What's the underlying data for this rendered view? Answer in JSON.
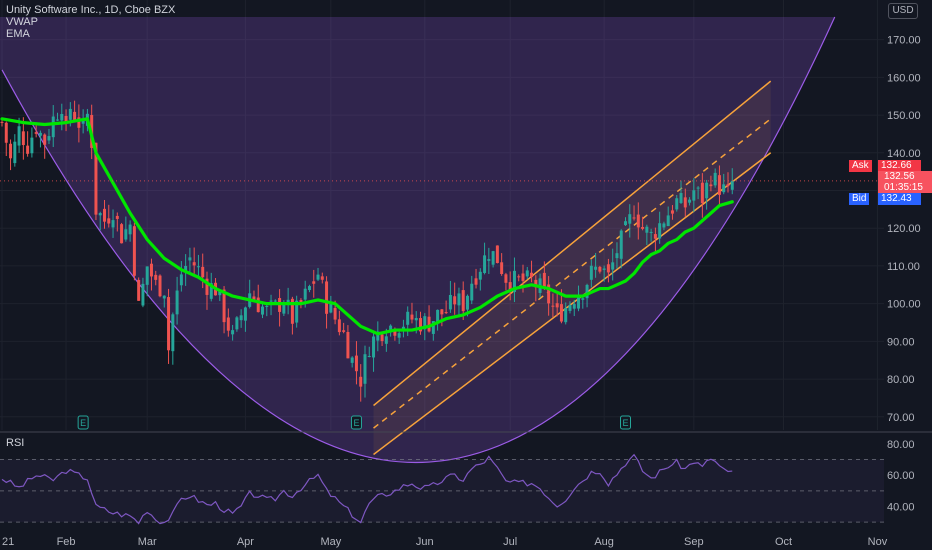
{
  "legend": {
    "title": "Unity Software Inc., 1D, Cboe BZX",
    "vwap": "VWAP",
    "ema": "EMA"
  },
  "currency": "USD",
  "quote": {
    "ask_label": "Ask",
    "ask_value": "132.66",
    "last_value": "132.56",
    "countdown": "01:35:15",
    "bid_label": "Bid",
    "bid_value": "132.43"
  },
  "rsi_panel": {
    "label": "RSI"
  },
  "earnings_marker": "E",
  "colors": {
    "background": "#131722",
    "up": "#26a69a",
    "down": "#ef5350",
    "ema": "#00e600",
    "channel": "#f7a23b",
    "arc": "#9c5ce8",
    "rsi": "#7e57c2",
    "ask": "#f23645",
    "bid": "#2962ff"
  },
  "chart_data": [
    {
      "type": "candlestick",
      "title": "Unity Software Inc., 1D, Cboe BZX",
      "ylabel": "USD",
      "ylim": [
        66.5,
        176
      ],
      "y_ticks": [
        "170.00",
        "160.00",
        "150.00",
        "140.00",
        "130.00",
        "120.00",
        "110.00",
        "100.00",
        "90.00",
        "80.00",
        "70.00"
      ],
      "x_ticks": [
        {
          "label": "21",
          "pos": 0
        },
        {
          "label": "Feb",
          "pos": 15
        },
        {
          "label": "Mar",
          "pos": 34
        },
        {
          "label": "Apr",
          "pos": 57
        },
        {
          "label": "May",
          "pos": 77
        },
        {
          "label": "Jun",
          "pos": 99
        },
        {
          "label": "Jul",
          "pos": 119
        },
        {
          "label": "Aug",
          "pos": 141
        },
        {
          "label": "Sep",
          "pos": 162
        },
        {
          "label": "Oct",
          "pos": 183
        },
        {
          "label": "Nov",
          "pos": 205
        }
      ],
      "x_range": [
        0,
        207
      ],
      "last_bar": 171,
      "earnings_bars": [
        19,
        83,
        146
      ],
      "anchors": [
        [
          0,
          148
        ],
        [
          2,
          138
        ],
        [
          4,
          146
        ],
        [
          6,
          142
        ],
        [
          8,
          147
        ],
        [
          10,
          143
        ],
        [
          12,
          149
        ],
        [
          14,
          153
        ],
        [
          15,
          145
        ],
        [
          16,
          152
        ],
        [
          18,
          148
        ],
        [
          19,
          146
        ],
        [
          20,
          150
        ],
        [
          21,
          143
        ],
        [
          22,
          125
        ],
        [
          24,
          122
        ],
        [
          26,
          125
        ],
        [
          28,
          118
        ],
        [
          30,
          121
        ],
        [
          32,
          99
        ],
        [
          34,
          110
        ],
        [
          36,
          105
        ],
        [
          38,
          104
        ],
        [
          39,
          88
        ],
        [
          40,
          97
        ],
        [
          42,
          108
        ],
        [
          44,
          112
        ],
        [
          46,
          109
        ],
        [
          48,
          105
        ],
        [
          50,
          104
        ],
        [
          52,
          97
        ],
        [
          54,
          91
        ],
        [
          56,
          97
        ],
        [
          58,
          103
        ],
        [
          60,
          100
        ],
        [
          62,
          98
        ],
        [
          64,
          99
        ],
        [
          66,
          101
        ],
        [
          68,
          96
        ],
        [
          70,
          100
        ],
        [
          72,
          104
        ],
        [
          74,
          108
        ],
        [
          76,
          100
        ],
        [
          78,
          96
        ],
        [
          80,
          92
        ],
        [
          82,
          85
        ],
        [
          84,
          80
        ],
        [
          86,
          89
        ],
        [
          88,
          92
        ],
        [
          90,
          94
        ],
        [
          92,
          94
        ],
        [
          94,
          95
        ],
        [
          96,
          96
        ],
        [
          98,
          95
        ],
        [
          100,
          95
        ],
        [
          102,
          97
        ],
        [
          104,
          98
        ],
        [
          106,
          101
        ],
        [
          108,
          100
        ],
        [
          110,
          106
        ],
        [
          112,
          110
        ],
        [
          114,
          114
        ],
        [
          116,
          112
        ],
        [
          118,
          107
        ],
        [
          120,
          106
        ],
        [
          122,
          106
        ],
        [
          124,
          106
        ],
        [
          126,
          104
        ],
        [
          128,
          101
        ],
        [
          130,
          97
        ],
        [
          132,
          99
        ],
        [
          134,
          102
        ],
        [
          136,
          104
        ],
        [
          138,
          108
        ],
        [
          140,
          110
        ],
        [
          142,
          107
        ],
        [
          144,
          114
        ],
        [
          146,
          119
        ],
        [
          148,
          125
        ],
        [
          150,
          120
        ],
        [
          152,
          118
        ],
        [
          154,
          121
        ],
        [
          156,
          124
        ],
        [
          158,
          127
        ],
        [
          160,
          126
        ],
        [
          162,
          130
        ],
        [
          164,
          128
        ],
        [
          166,
          134
        ],
        [
          168,
          131
        ],
        [
          170,
          129
        ],
        [
          171,
          132.56
        ]
      ],
      "ema": [
        [
          0,
          149
        ],
        [
          5,
          148
        ],
        [
          10,
          147.5
        ],
        [
          15,
          148
        ],
        [
          20,
          149
        ],
        [
          22,
          140
        ],
        [
          26,
          132
        ],
        [
          30,
          124
        ],
        [
          34,
          117
        ],
        [
          38,
          112
        ],
        [
          42,
          109
        ],
        [
          46,
          107
        ],
        [
          50,
          104
        ],
        [
          54,
          102
        ],
        [
          58,
          101
        ],
        [
          62,
          100
        ],
        [
          66,
          100
        ],
        [
          70,
          100
        ],
        [
          74,
          101
        ],
        [
          78,
          100
        ],
        [
          80,
          98
        ],
        [
          84,
          94
        ],
        [
          88,
          92
        ],
        [
          92,
          93
        ],
        [
          96,
          93
        ],
        [
          100,
          94
        ],
        [
          104,
          96
        ],
        [
          108,
          97
        ],
        [
          112,
          99
        ],
        [
          116,
          102
        ],
        [
          120,
          104
        ],
        [
          124,
          105
        ],
        [
          128,
          104
        ],
        [
          132,
          102
        ],
        [
          136,
          102
        ],
        [
          138,
          103
        ],
        [
          140,
          104
        ],
        [
          142,
          104
        ],
        [
          144,
          105
        ],
        [
          146,
          106
        ],
        [
          148,
          108
        ],
        [
          150,
          111
        ],
        [
          152,
          113
        ],
        [
          154,
          114
        ],
        [
          156,
          116
        ],
        [
          158,
          117
        ],
        [
          160,
          119
        ],
        [
          162,
          120
        ],
        [
          164,
          122
        ],
        [
          166,
          124
        ],
        [
          168,
          126
        ],
        [
          171,
          127
        ]
      ],
      "channel": {
        "x_start": 87,
        "x_end": 180,
        "upper": [
          73,
          159
        ],
        "middle": [
          67,
          149
        ],
        "lower": [
          60,
          140
        ]
      },
      "arc": {
        "left_top": [
          0,
          162
        ],
        "bottom": [
          100,
          58
        ],
        "right_top": [
          195,
          176
        ],
        "top_y": 176
      }
    },
    {
      "type": "line",
      "title": "RSI",
      "ylim": [
        25,
        85
      ],
      "y_ticks": [
        "80.00",
        "60.00",
        "40.00"
      ],
      "bands": [
        70,
        50,
        30
      ],
      "anchors": [
        [
          0,
          58
        ],
        [
          4,
          52
        ],
        [
          8,
          60
        ],
        [
          12,
          57
        ],
        [
          15,
          63
        ],
        [
          18,
          60
        ],
        [
          20,
          58
        ],
        [
          22,
          40
        ],
        [
          26,
          36
        ],
        [
          30,
          34
        ],
        [
          32,
          30
        ],
        [
          34,
          38
        ],
        [
          36,
          32
        ],
        [
          38,
          30
        ],
        [
          40,
          35
        ],
        [
          42,
          45
        ],
        [
          44,
          47
        ],
        [
          46,
          44
        ],
        [
          48,
          41
        ],
        [
          50,
          42
        ],
        [
          52,
          38
        ],
        [
          54,
          35
        ],
        [
          56,
          40
        ],
        [
          58,
          48
        ],
        [
          60,
          47
        ],
        [
          62,
          44
        ],
        [
          64,
          45
        ],
        [
          66,
          50
        ],
        [
          68,
          47
        ],
        [
          70,
          52
        ],
        [
          72,
          56
        ],
        [
          74,
          60
        ],
        [
          76,
          50
        ],
        [
          78,
          45
        ],
        [
          80,
          40
        ],
        [
          82,
          35
        ],
        [
          84,
          30
        ],
        [
          86,
          42
        ],
        [
          88,
          46
        ],
        [
          90,
          48
        ],
        [
          92,
          50
        ],
        [
          94,
          53
        ],
        [
          96,
          55
        ],
        [
          98,
          52
        ],
        [
          100,
          52
        ],
        [
          102,
          55
        ],
        [
          104,
          58
        ],
        [
          106,
          60
        ],
        [
          108,
          57
        ],
        [
          110,
          64
        ],
        [
          112,
          67
        ],
        [
          114,
          71
        ],
        [
          116,
          64
        ],
        [
          118,
          56
        ],
        [
          120,
          55
        ],
        [
          122,
          55
        ],
        [
          124,
          55
        ],
        [
          126,
          52
        ],
        [
          128,
          46
        ],
        [
          130,
          41
        ],
        [
          132,
          45
        ],
        [
          134,
          52
        ],
        [
          136,
          57
        ],
        [
          138,
          62
        ],
        [
          140,
          63
        ],
        [
          142,
          55
        ],
        [
          144,
          61
        ],
        [
          146,
          68
        ],
        [
          148,
          72
        ],
        [
          150,
          63
        ],
        [
          152,
          58
        ],
        [
          154,
          62
        ],
        [
          156,
          66
        ],
        [
          158,
          68
        ],
        [
          160,
          64
        ],
        [
          162,
          69
        ],
        [
          164,
          65
        ],
        [
          166,
          71
        ],
        [
          168,
          66
        ],
        [
          170,
          61
        ],
        [
          171,
          62
        ]
      ]
    }
  ]
}
